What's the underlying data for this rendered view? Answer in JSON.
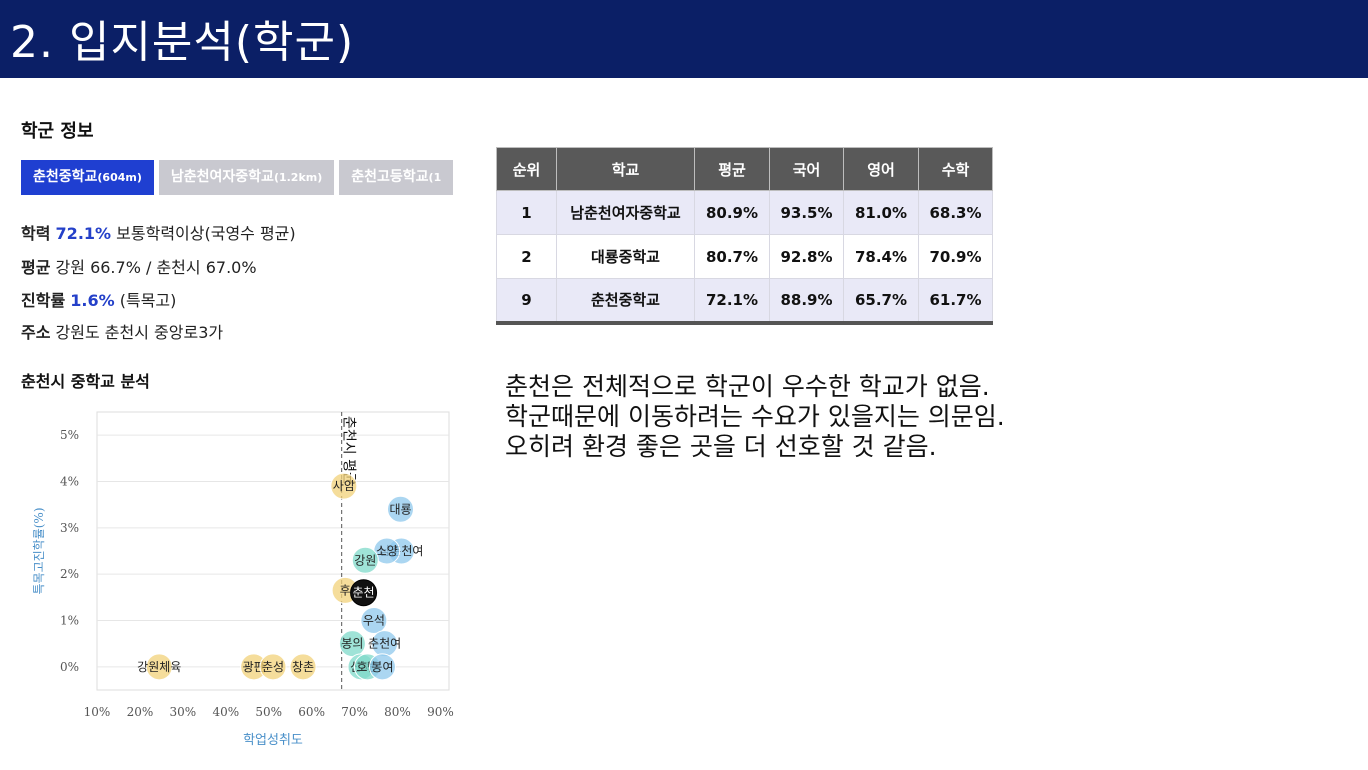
{
  "header": {
    "title": "2. 입지분석(학군)"
  },
  "school_info": {
    "title": "학군 정보",
    "tabs": [
      {
        "name": "춘천중학교",
        "dist": "(604m)",
        "active": true
      },
      {
        "name": "남춘천여자중학교",
        "dist": "(1.2km)",
        "active": false
      },
      {
        "name": "춘천고등학교",
        "dist": "(1",
        "active": false
      }
    ],
    "lines": [
      {
        "label": "학력",
        "value": "72.1%",
        "rest": "보통학력이상(국영수 평균)"
      },
      {
        "label": "평균",
        "value": "",
        "rest": "강원 66.7% / 춘천시 67.0%"
      },
      {
        "label": "진학률",
        "value": "1.6%",
        "rest": "(특목고)"
      },
      {
        "label": "주소",
        "value": "",
        "rest": "강원도 춘천시 중앙로3가"
      }
    ]
  },
  "analysis": {
    "title": "춘천시 중학교 분석"
  },
  "table": {
    "headers": [
      "순위",
      "학교",
      "평균",
      "국어",
      "영어",
      "수학"
    ],
    "rows": [
      [
        "1",
        "남춘천여자중학교",
        "80.9%",
        "93.5%",
        "81.0%",
        "68.3%"
      ],
      [
        "2",
        "대룡중학교",
        "80.7%",
        "92.8%",
        "78.4%",
        "70.9%"
      ],
      [
        "9",
        "춘천중학교",
        "72.1%",
        "88.9%",
        "65.7%",
        "61.7%"
      ]
    ]
  },
  "comment": {
    "lines": [
      "춘천은 전체적으로 학군이 우수한 학교가 없음.",
      "학군때문에 이동하려는 수요가 있을지는 의문임.",
      "오히려 환경 좋은 곳을 더 선호할 것 같음."
    ]
  },
  "chart_data": {
    "type": "scatter",
    "xlabel": "학업성취도",
    "ylabel": "특목고진학률(%)",
    "xlim": [
      10,
      92
    ],
    "ylim": [
      -0.5,
      5.5
    ],
    "xticks": [
      "10%",
      "20%",
      "30%",
      "40%",
      "50%",
      "60%",
      "70%",
      "80%",
      "90%"
    ],
    "yticks": [
      "0%",
      "1%",
      "2%",
      "3%",
      "4%",
      "5%"
    ],
    "reference_line": {
      "x": 67.0,
      "label": "춘천시 평균"
    },
    "grid": true,
    "colors": {
      "below": "#f2d27a",
      "above": "#8fc8ec",
      "mid": "#7fd9c9",
      "highlight": "#111111"
    },
    "points": [
      {
        "label": "강원체육",
        "x": 24.5,
        "y": 0.0,
        "group": "below"
      },
      {
        "label": "광판",
        "x": 46.5,
        "y": 0.0,
        "group": "below"
      },
      {
        "label": "춘성",
        "x": 51.0,
        "y": 0.0,
        "group": "below"
      },
      {
        "label": "창촌",
        "x": 58.0,
        "y": 0.0,
        "group": "below"
      },
      {
        "label": "사암",
        "x": 67.5,
        "y": 3.9,
        "group": "below"
      },
      {
        "label": "후",
        "x": 67.8,
        "y": 1.65,
        "group": "below"
      },
      {
        "label": "춘천",
        "x": 72.1,
        "y": 1.6,
        "group": "highlight"
      },
      {
        "label": "대룡",
        "x": 80.7,
        "y": 3.4,
        "group": "above"
      },
      {
        "label": "남춘천여",
        "x": 80.9,
        "y": 2.5,
        "group": "above"
      },
      {
        "label": "소양",
        "x": 77.5,
        "y": 2.5,
        "group": "above"
      },
      {
        "label": "강원",
        "x": 72.5,
        "y": 2.3,
        "group": "mid"
      },
      {
        "label": "우석",
        "x": 74.5,
        "y": 1.0,
        "group": "above"
      },
      {
        "label": "봉의",
        "x": 69.5,
        "y": 0.5,
        "group": "mid"
      },
      {
        "label": "춘천여",
        "x": 77.0,
        "y": 0.5,
        "group": "above"
      },
      {
        "label": "신북",
        "x": 71.5,
        "y": 0.0,
        "group": "mid"
      },
      {
        "label": "호반",
        "x": 73.0,
        "y": 0.0,
        "group": "mid"
      },
      {
        "label": "봉여",
        "x": 76.5,
        "y": 0.0,
        "group": "above"
      }
    ]
  }
}
